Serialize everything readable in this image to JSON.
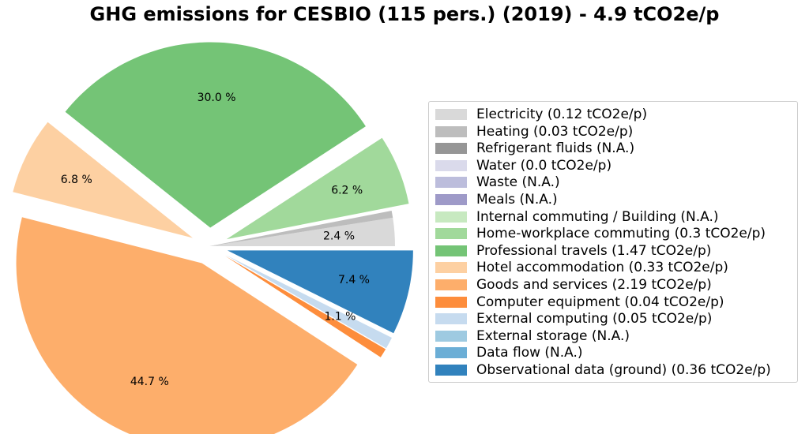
{
  "chart_data": {
    "type": "pie",
    "title": "GHG emissions for CESBIO (115 pers.)  (2019) - 4.9 tCO2e/p",
    "series": [
      {
        "label": "Electricity (0.12 tCO2e/p)",
        "value": 0.12,
        "color": "#d9d9d9",
        "pct_label": "2.4 %",
        "explode": false
      },
      {
        "label": "Heating (0.03 tCO2e/p)",
        "value": 0.03,
        "color": "#bdbdbd",
        "pct_label": "",
        "explode": false
      },
      {
        "label": "Refrigerant fluids (N.A.)",
        "value": 0,
        "color": "#969696",
        "pct_label": "",
        "explode": false
      },
      {
        "label": "Water (0.0 tCO2e/p)",
        "value": 0.0,
        "color": "#dadaeb",
        "pct_label": "",
        "explode": false
      },
      {
        "label": "Waste (N.A.)",
        "value": 0,
        "color": "#bcbddc",
        "pct_label": "",
        "explode": false
      },
      {
        "label": "Meals (N.A.)",
        "value": 0,
        "color": "#9e9ac8",
        "pct_label": "",
        "explode": false
      },
      {
        "label": "Internal commuting / Building (N.A.)",
        "value": 0,
        "color": "#c7e9c0",
        "pct_label": "",
        "explode": false
      },
      {
        "label": "Home-workplace commuting (0.3 tCO2e/p)",
        "value": 0.3,
        "color": "#a1d99b",
        "pct_label": "6.2 %",
        "explode": true
      },
      {
        "label": "Professional travels (1.47 tCO2e/p)",
        "value": 1.47,
        "color": "#74c476",
        "pct_label": "30.0 %",
        "explode": true
      },
      {
        "label": "Hotel accommodation (0.33 tCO2e/p)",
        "value": 0.33,
        "color": "#fdd0a2",
        "pct_label": "6.8 %",
        "explode": true
      },
      {
        "label": "Goods and services (2.19 tCO2e/p)",
        "value": 2.19,
        "color": "#fdae6b",
        "pct_label": "44.7 %",
        "explode": true
      },
      {
        "label": "Computer equipment (0.04 tCO2e/p)",
        "value": 0.04,
        "color": "#fd8d3c",
        "pct_label": "",
        "explode": true
      },
      {
        "label": "External computing (0.05 tCO2e/p)",
        "value": 0.05,
        "color": "#c6dbef",
        "pct_label": "1.1 %",
        "explode": true
      },
      {
        "label": "External storage (N.A.)",
        "value": 0,
        "color": "#9ecae1",
        "pct_label": "",
        "explode": true
      },
      {
        "label": "Data flow (N.A.)",
        "value": 0,
        "color": "#6baed6",
        "pct_label": "",
        "explode": true
      },
      {
        "label": "Observational data (ground) (0.36 tCO2e/p)",
        "value": 0.36,
        "color": "#3182bd",
        "pct_label": "7.4 %",
        "explode": true
      }
    ],
    "legend_position": "right"
  }
}
